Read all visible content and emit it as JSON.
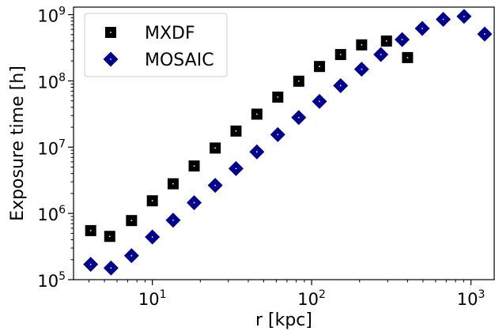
{
  "chart_data": {
    "type": "scatter",
    "xlabel": "r [kpc]",
    "ylabel": "Exposure time [h]",
    "xscale": "log",
    "yscale": "log",
    "xlim": [
      3.2,
      1400
    ],
    "ylim": [
      100000,
      1300000000
    ],
    "grid": false,
    "legend_position": "top-left",
    "xticks": [
      {
        "value": 10,
        "base": "10",
        "exp": "1"
      },
      {
        "value": 100,
        "base": "10",
        "exp": "2"
      },
      {
        "value": 1000,
        "base": "10",
        "exp": "3"
      }
    ],
    "yticks": [
      {
        "value": 100000,
        "base": "10",
        "exp": "5"
      },
      {
        "value": 1000000,
        "base": "10",
        "exp": "6"
      },
      {
        "value": 10000000,
        "base": "10",
        "exp": "7"
      },
      {
        "value": 100000000,
        "base": "10",
        "exp": "8"
      },
      {
        "value": 1000000000,
        "base": "10",
        "exp": "9"
      }
    ],
    "series": [
      {
        "name": "MXDF",
        "marker": "square",
        "color": "#000000",
        "points": [
          [
            4.1,
            550000
          ],
          [
            5.4,
            450000
          ],
          [
            7.4,
            780000
          ],
          [
            10,
            1550000
          ],
          [
            13.5,
            2800000
          ],
          [
            18.3,
            5200000
          ],
          [
            24.8,
            9700000
          ],
          [
            33.5,
            17500000
          ],
          [
            45.3,
            31500000
          ],
          [
            61.3,
            57000000
          ],
          [
            83,
            99000000
          ],
          [
            112,
            165000000
          ],
          [
            152,
            250000000
          ],
          [
            206,
            350000000
          ],
          [
            295,
            400000000
          ],
          [
            400,
            225000000
          ]
        ]
      },
      {
        "name": "MOSAIC",
        "marker": "diamond",
        "color": "#00008b",
        "points": [
          [
            4.1,
            170000
          ],
          [
            5.5,
            150000
          ],
          [
            7.4,
            230000
          ],
          [
            10,
            440000
          ],
          [
            13.5,
            790000
          ],
          [
            18.3,
            1450000
          ],
          [
            24.8,
            2650000
          ],
          [
            33.5,
            4750000
          ],
          [
            45.3,
            8500000
          ],
          [
            61.3,
            15500000
          ],
          [
            83,
            28000000
          ],
          [
            112,
            49000000
          ],
          [
            152,
            85000000
          ],
          [
            206,
            150000000
          ],
          [
            272,
            250000000
          ],
          [
            370,
            420000000
          ],
          [
            495,
            620000000
          ],
          [
            670,
            850000000
          ],
          [
            905,
            940000000
          ],
          [
            1220,
            510000000
          ]
        ]
      }
    ]
  }
}
